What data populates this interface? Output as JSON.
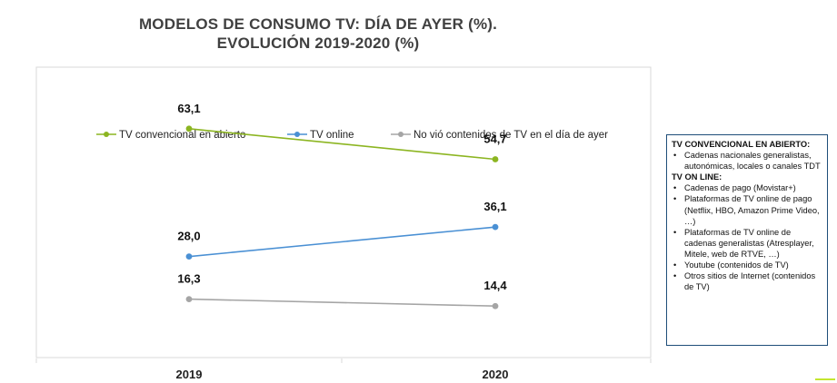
{
  "title_line1": "MODELOS DE CONSUMO TV: DÍA DE AYER (%).",
  "title_line2": "EVOLUCIÓN 2019-2020 (%)",
  "chart_data": {
    "type": "line",
    "x": [
      "2019",
      "2020"
    ],
    "ylim": [
      0,
      80
    ],
    "legend_position": "top",
    "grid": false,
    "series": [
      {
        "name": "TV convencional en abierto",
        "values": [
          63.1,
          54.7
        ],
        "labels": [
          "63,1",
          "54,7"
        ],
        "color": "#8cb521"
      },
      {
        "name": "TV online",
        "values": [
          28.0,
          36.1
        ],
        "labels": [
          "28,0",
          "36,1"
        ],
        "color": "#4a90d4"
      },
      {
        "name": "No vió contenidos de TV en el día de ayer",
        "values": [
          16.3,
          14.4
        ],
        "labels": [
          "16,3",
          "14,4"
        ],
        "color": "#a5a5a5"
      }
    ]
  },
  "notes": {
    "heading1": "TV CONVENCIONAL EN ABIERTO:",
    "items1": [
      "Cadenas nacionales generalistas, autonómicas, locales o canales TDT"
    ],
    "heading2": "TV ON LINE:",
    "items2": [
      "Cadenas de pago (Movistar+)",
      "Plataformas de TV online de pago (Netflix, HBO, Amazon Prime Video, …)",
      "Plataformas de TV online de cadenas generalistas (Atresplayer, Mitele, web de RTVE, …)",
      "Youtube (contenidos de TV)",
      "Otros sitios de Internet (contenidos de TV)"
    ]
  }
}
